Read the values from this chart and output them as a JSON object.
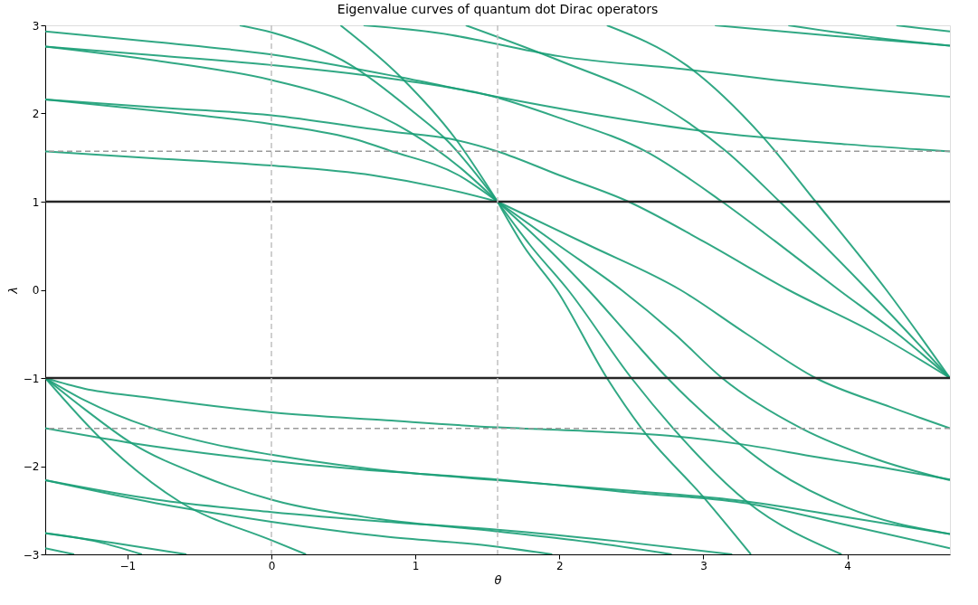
{
  "chart_data": {
    "type": "line",
    "title": "Eigenvalue curves of quantum dot Dirac operators",
    "xlabel": "θ",
    "ylabel": "λ",
    "xlim": [
      -1.5708,
      4.7124
    ],
    "ylim": [
      -3,
      3
    ],
    "xticks": [
      {
        "value": -1,
        "label": "−1"
      },
      0,
      1,
      2,
      3,
      4
    ],
    "yticks": [
      {
        "value": -3,
        "label": "−3"
      },
      {
        "value": -2,
        "label": "−2"
      },
      {
        "value": -1,
        "label": "−1"
      },
      0,
      1,
      2,
      3
    ],
    "grid": false,
    "legend": false,
    "line_style": "solid",
    "marker": "none",
    "ref_lines": [
      {
        "axis": "y",
        "value": 1,
        "color": "#262626",
        "line_style": "solid"
      },
      {
        "axis": "y",
        "value": -1,
        "color": "#262626",
        "line_style": "solid"
      },
      {
        "axis": "y",
        "value": 1.5708,
        "color": "#9a9a9a",
        "line_style": "dashed"
      },
      {
        "axis": "y",
        "value": -1.5708,
        "color": "#9a9a9a",
        "line_style": "dashed"
      },
      {
        "axis": "x",
        "value": 0,
        "color": "#c0c0c0",
        "line_style": "dashed"
      },
      {
        "axis": "x",
        "value": 1.5708,
        "color": "#c0c0c0",
        "line_style": "dashed"
      }
    ],
    "series": [
      {
        "color": "#1b9e77",
        "x": [
          -1.5708,
          -1.3,
          -0.86,
          0,
          0.8,
          1.5708,
          2.3,
          2.79,
          3.26,
          3.8,
          4.3,
          4.7124
        ],
        "values": [
          -1,
          -1.12,
          -1.22,
          -1.39,
          -1.48,
          -1.56,
          -1.61,
          -1.66,
          -1.75,
          -1.9,
          -2.03,
          -2.15
        ]
      },
      {
        "color": "#1b9e77",
        "x": [
          -1.5708,
          -1.3,
          -0.84,
          -0.4,
          0,
          0.69,
          1.5708,
          2.5,
          3.3,
          4.0,
          4.7124
        ],
        "values": [
          -1,
          -1.25,
          -1.56,
          -1.75,
          -1.87,
          -2.03,
          -2.16,
          -2.28,
          -2.4,
          -2.58,
          -2.77
        ]
      },
      {
        "color": "#1b9e77",
        "x": [
          -1.5708,
          -1.3,
          -0.97,
          -0.5,
          0,
          0.75,
          1.5708,
          2.2,
          2.78
        ],
        "values": [
          -1,
          -1.35,
          -1.74,
          -2.1,
          -2.38,
          -2.6,
          -2.74,
          -2.86,
          -3
        ]
      },
      {
        "color": "#1b9e77",
        "x": [
          -1.5708,
          -1.19,
          -0.64,
          0,
          0.24
        ],
        "values": [
          -1,
          -1.68,
          -2.4,
          -2.84,
          -3
        ]
      },
      {
        "color": "#1b9e77",
        "x": [
          -1.5708,
          -1.0,
          0,
          0.8,
          1.5708,
          2.5,
          3.3,
          4.0,
          4.7124
        ],
        "values": [
          -1.57,
          -1.73,
          -1.94,
          -2.06,
          -2.15,
          -2.3,
          -2.42,
          -2.67,
          -2.93
        ]
      },
      {
        "color": "#1b9e77",
        "x": [
          -1.5708,
          -0.8,
          0,
          0.8,
          1.5708,
          2.4,
          3.2
        ],
        "values": [
          -2.16,
          -2.38,
          -2.52,
          -2.63,
          -2.72,
          -2.85,
          -3
        ]
      },
      {
        "color": "#1b9e77",
        "x": [
          -1.5708,
          -0.8,
          0,
          0.8,
          1.5,
          1.95
        ],
        "values": [
          -2.16,
          -2.42,
          -2.63,
          -2.8,
          -2.9,
          -3
        ]
      },
      {
        "color": "#1b9e77",
        "x": [
          -1.5708,
          -1.2,
          -0.9
        ],
        "values": [
          -2.76,
          -2.86,
          -3
        ]
      },
      {
        "color": "#1b9e77",
        "x": [
          -1.5708,
          -1.1,
          -0.59
        ],
        "values": [
          -2.76,
          -2.87,
          -3
        ]
      },
      {
        "color": "#1b9e77",
        "x": [
          -1.5708,
          -1.37
        ],
        "values": [
          -2.93,
          -3
        ]
      },
      {
        "color": "#1b9e77",
        "x": [
          1.5708,
          2.2,
          2.84,
          3.3,
          3.78,
          4.3,
          4.7124
        ],
        "values": [
          1,
          0.51,
          0,
          -0.5,
          -1,
          -1.33,
          -1.57
        ]
      },
      {
        "color": "#1b9e77",
        "x": [
          1.5708,
          2.0,
          2.43,
          2.8,
          3.13,
          3.68,
          4.2,
          4.7124
        ],
        "values": [
          1,
          0.5,
          0,
          -0.5,
          -1,
          -1.57,
          -1.92,
          -2.16
        ]
      },
      {
        "color": "#1b9e77",
        "x": [
          1.5708,
          1.9,
          2.2,
          2.5,
          2.75,
          3.12,
          3.5,
          4.0,
          4.7124
        ],
        "values": [
          1,
          0.5,
          0,
          -0.55,
          -1,
          -1.57,
          -2.05,
          -2.47,
          -2.77
        ]
      },
      {
        "color": "#1b9e77",
        "x": [
          1.5708,
          1.8,
          2.06,
          2.5,
          2.79,
          3.3,
          3.96
        ],
        "values": [
          1,
          0.5,
          0,
          -1,
          -1.57,
          -2.4,
          -3
        ]
      },
      {
        "color": "#1b9e77",
        "x": [
          1.5708,
          1.75,
          1.98,
          2.33,
          2.57,
          3.0,
          3.33
        ],
        "values": [
          1,
          0.5,
          0,
          -1,
          -1.57,
          -2.35,
          -3
        ]
      },
      {
        "color": "#1b9e77",
        "x": [
          -1.5708,
          -0.8,
          0,
          0.7,
          1.2,
          1.5708
        ],
        "values": [
          1.57,
          1.49,
          1.41,
          1.3,
          1.15,
          1
        ]
      },
      {
        "color": "#1b9e77",
        "x": [
          -1.5708,
          -0.8,
          0,
          0.6,
          0.82,
          1.3,
          1.5708
        ],
        "values": [
          2.16,
          2.03,
          1.88,
          1.7,
          1.58,
          1.3,
          1
        ]
      },
      {
        "color": "#1b9e77",
        "x": [
          -1.5708,
          -0.8,
          0,
          0.5,
          0.97,
          1.3,
          1.5708
        ],
        "values": [
          2.76,
          2.6,
          2.38,
          2.15,
          1.78,
          1.4,
          1
        ]
      },
      {
        "color": "#1b9e77",
        "x": [
          -0.22,
          0,
          0.55,
          1.0,
          1.21,
          1.5708
        ],
        "values": [
          3,
          2.92,
          2.55,
          2.0,
          1.71,
          1
        ]
      },
      {
        "color": "#1b9e77",
        "x": [
          0.48,
          0.9,
          1.28,
          1.5708
        ],
        "values": [
          3,
          2.41,
          1.71,
          1
        ]
      },
      {
        "color": "#1b9e77",
        "x": [
          -1.5708,
          -0.8,
          0,
          0.9,
          1.5,
          2.2,
          3.0,
          4.0,
          4.7124
        ],
        "values": [
          2.93,
          2.81,
          2.67,
          2.41,
          2.21,
          2.0,
          1.8,
          1.65,
          1.57
        ]
      },
      {
        "color": "#1b9e77",
        "x": [
          -1.5708,
          -0.8,
          0,
          0.9,
          1.5,
          2.0,
          2.6,
          3.13,
          3.5,
          3.94,
          4.35,
          4.7124
        ],
        "values": [
          2.76,
          2.66,
          2.55,
          2.38,
          2.21,
          1.95,
          1.57,
          1,
          0.55,
          0,
          -0.5,
          -1
        ]
      },
      {
        "color": "#1b9e77",
        "x": [
          0.64,
          1.25,
          1.5,
          2.0,
          2.88,
          3.5,
          4.7124
        ],
        "values": [
          3,
          2.89,
          2.81,
          2.65,
          2.5,
          2.38,
          2.19
        ]
      },
      {
        "color": "#1b9e77",
        "x": [
          -1.5708,
          -0.8,
          0,
          0.8,
          1.25,
          1.5708,
          2.0,
          2.48,
          3.0,
          3.59,
          4.2,
          4.7124
        ],
        "values": [
          2.16,
          2.07,
          1.98,
          1.8,
          1.71,
          1.57,
          1.3,
          1,
          0.55,
          0,
          -0.5,
          -1
        ]
      },
      {
        "color": "#1b9e77",
        "x": [
          1.35,
          2.0,
          2.7,
          3.16,
          3.53,
          4.14,
          4.7124
        ],
        "values": [
          3,
          2.6,
          2.1,
          1.57,
          1,
          0,
          -1
        ]
      },
      {
        "color": "#1b9e77",
        "x": [
          2.33,
          2.88,
          3.41,
          3.78,
          4.27,
          4.7124
        ],
        "values": [
          3,
          2.55,
          1.74,
          1,
          0,
          -1
        ]
      },
      {
        "color": "#1b9e77",
        "x": [
          3.08,
          3.9,
          4.7124
        ],
        "values": [
          3,
          2.88,
          2.77
        ]
      },
      {
        "color": "#1b9e77",
        "x": [
          3.59,
          4.2,
          4.7124
        ],
        "values": [
          3,
          2.86,
          2.77
        ]
      },
      {
        "color": "#1b9e77",
        "x": [
          4.34,
          4.7124
        ],
        "values": [
          3,
          2.93
        ]
      }
    ]
  }
}
